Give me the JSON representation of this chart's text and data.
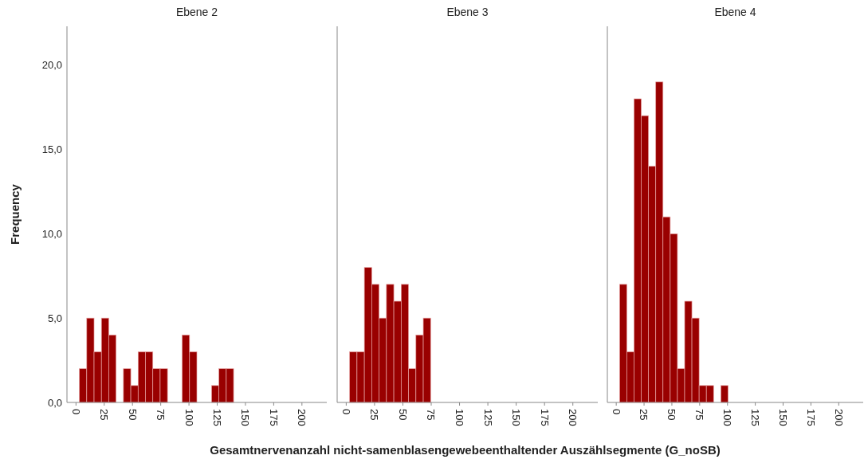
{
  "chart_data": [
    {
      "type": "histogram",
      "title": "Ebene 2",
      "ylabel": "Frequency",
      "xlabel": "Gesamtnervenanzahl nicht-samenblasengewebeenthaltender Auszählsegmente (G_noSB)",
      "color": "#990000",
      "bins": [
        3,
        9.5,
        16,
        22.5,
        29,
        35.5,
        42,
        48.5,
        55,
        61.5,
        68,
        74.5,
        81,
        87.5,
        94,
        100.5,
        107,
        113.5,
        120,
        126.5,
        133,
        139.5
      ],
      "values": [
        2,
        5,
        3,
        5,
        4,
        0,
        2,
        1,
        3,
        3,
        2,
        2,
        0,
        0,
        4,
        3,
        0,
        0,
        1,
        2,
        2
      ],
      "xlim": [
        -8,
        222
      ],
      "xticks": [
        0,
        25,
        50,
        75,
        100,
        125,
        150,
        175,
        200
      ],
      "ylim": [
        0,
        22.3
      ],
      "yticks": [
        {
          "value": 0,
          "label": "0,0"
        },
        {
          "value": 5,
          "label": "5,0"
        },
        {
          "value": 10,
          "label": "10,0"
        },
        {
          "value": 15,
          "label": "15,0"
        },
        {
          "value": 20,
          "label": "20,0"
        }
      ]
    },
    {
      "type": "histogram",
      "title": "Ebene 3",
      "color": "#990000",
      "bins": [
        3,
        9.5,
        16,
        22.5,
        29,
        35.5,
        42,
        48.5,
        55,
        61.5,
        68,
        74.5
      ],
      "values": [
        3,
        3,
        8,
        7,
        5,
        7,
        6,
        7,
        2,
        4,
        5
      ],
      "xlim": [
        -8,
        222
      ],
      "xticks": [
        0,
        25,
        50,
        75,
        100,
        125,
        150,
        175,
        200
      ],
      "ylim": [
        0,
        22.3
      ],
      "tick_labels": "x"
    },
    {
      "type": "histogram",
      "title": "Ebene 4",
      "color": "#990000",
      "bins": [
        3,
        9.5,
        16,
        22.5,
        29,
        35.5,
        42,
        48.5,
        55,
        61.5,
        68,
        74.5,
        81,
        87.5,
        94,
        100.5
      ],
      "values": [
        7,
        3,
        18,
        17,
        14,
        19,
        11,
        10,
        2,
        6,
        5,
        1,
        1,
        0,
        1
      ],
      "xlim": [
        -8,
        222
      ],
      "xticks": [
        0,
        25,
        50,
        75,
        100,
        125,
        150,
        175,
        200
      ],
      "ylim": [
        0,
        22.3
      ],
      "tick_labels": "x"
    }
  ]
}
